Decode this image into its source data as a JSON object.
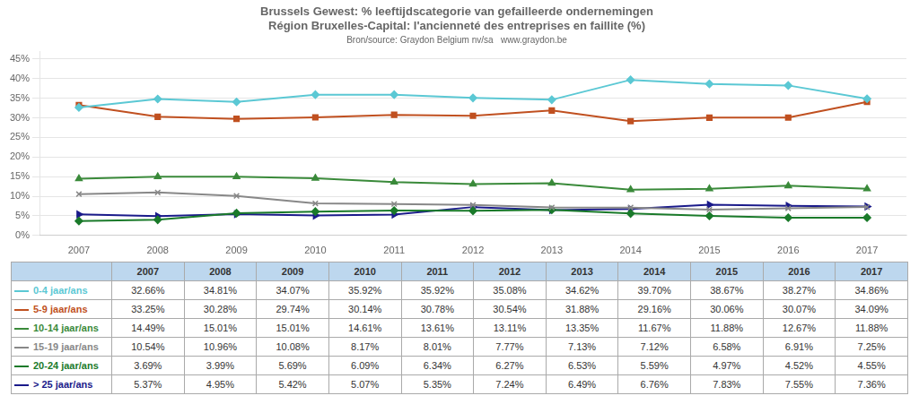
{
  "chart_data": {
    "type": "line",
    "title": [
      "Brussels Gewest: % leeftijdscategorie van gefailleerde ondernemingen",
      "Région Bruxelles-Capital: l'ancienneté des entreprises en faillite (%)"
    ],
    "subtitle": "Bron/source: Graydon Belgium nv/sa   www.graydon.be",
    "categories": [
      "2007",
      "2008",
      "2009",
      "2010",
      "2011",
      "2012",
      "2013",
      "2014",
      "2015",
      "2016",
      "2017"
    ],
    "series": [
      {
        "name": "0-4 jaar/ans",
        "color": "#5BC8D4",
        "marker": "diamond",
        "values": [
          32.66,
          34.81,
          34.07,
          35.92,
          35.92,
          35.08,
          34.62,
          39.7,
          38.67,
          38.27,
          34.86
        ],
        "value_labels": [
          "32.66%",
          "34.81%",
          "34.07%",
          "35.92%",
          "35.92%",
          "35.08%",
          "34.62%",
          "39.70%",
          "38.67%",
          "38.27%",
          "34.86%"
        ]
      },
      {
        "name": "5-9 jaar/ans",
        "color": "#C05020",
        "marker": "square",
        "values": [
          33.25,
          30.28,
          29.74,
          30.14,
          30.78,
          30.54,
          31.88,
          29.16,
          30.06,
          30.07,
          34.09
        ],
        "value_labels": [
          "33.25%",
          "30.28%",
          "29.74%",
          "30.14%",
          "30.78%",
          "30.54%",
          "31.88%",
          "29.16%",
          "30.06%",
          "30.07%",
          "34.09%"
        ]
      },
      {
        "name": "10-14 jaar/ans",
        "color": "#3A8A3A",
        "marker": "triangle",
        "values": [
          14.49,
          15.01,
          15.01,
          14.61,
          13.61,
          13.11,
          13.35,
          11.67,
          11.88,
          12.67,
          11.88
        ],
        "value_labels": [
          "14.49%",
          "15.01%",
          "15.01%",
          "14.61%",
          "13.61%",
          "13.11%",
          "13.35%",
          "11.67%",
          "11.88%",
          "12.67%",
          "11.88%"
        ]
      },
      {
        "name": "15-19 jaar/ans",
        "color": "#888888",
        "marker": "x",
        "values": [
          10.54,
          10.96,
          10.08,
          8.17,
          8.01,
          7.77,
          7.13,
          7.12,
          6.58,
          6.91,
          7.25
        ],
        "value_labels": [
          "10.54%",
          "10.96%",
          "10.08%",
          "8.17%",
          "8.01%",
          "7.77%",
          "7.13%",
          "7.12%",
          "6.58%",
          "6.91%",
          "7.25%"
        ]
      },
      {
        "name": "20-24 jaar/ans",
        "color": "#1A7A2A",
        "marker": "diamond",
        "values": [
          3.69,
          3.99,
          5.69,
          6.09,
          6.34,
          6.27,
          6.53,
          5.59,
          4.97,
          4.52,
          4.55
        ],
        "value_labels": [
          "3.69%",
          "3.99%",
          "5.69%",
          "6.09%",
          "6.34%",
          "6.27%",
          "6.53%",
          "5.59%",
          "4.97%",
          "4.52%",
          "4.55%"
        ]
      },
      {
        "name": "> 25 jaar/ans",
        "color": "#1A1A8A",
        "marker": "triangle_right",
        "values": [
          5.37,
          4.95,
          5.42,
          5.07,
          5.35,
          7.24,
          6.49,
          6.76,
          7.83,
          7.55,
          7.36
        ],
        "value_labels": [
          "5.37%",
          "4.95%",
          "5.42%",
          "5.07%",
          "5.35%",
          "7.24%",
          "6.49%",
          "6.76%",
          "7.83%",
          "7.55%",
          "7.36%"
        ]
      }
    ],
    "ylim": [
      0,
      47
    ],
    "yticks": [
      {
        "value": 0,
        "label": "0%"
      },
      {
        "value": 5,
        "label": "5%"
      },
      {
        "value": 10,
        "label": "10%"
      },
      {
        "value": 15,
        "label": "15%"
      },
      {
        "value": 20,
        "label": "20%"
      },
      {
        "value": 25,
        "label": "25%"
      },
      {
        "value": 30,
        "label": "30%"
      },
      {
        "value": 35,
        "label": "35%"
      },
      {
        "value": 40,
        "label": "40%"
      },
      {
        "value": 45,
        "label": "45%"
      }
    ],
    "grid": true
  }
}
